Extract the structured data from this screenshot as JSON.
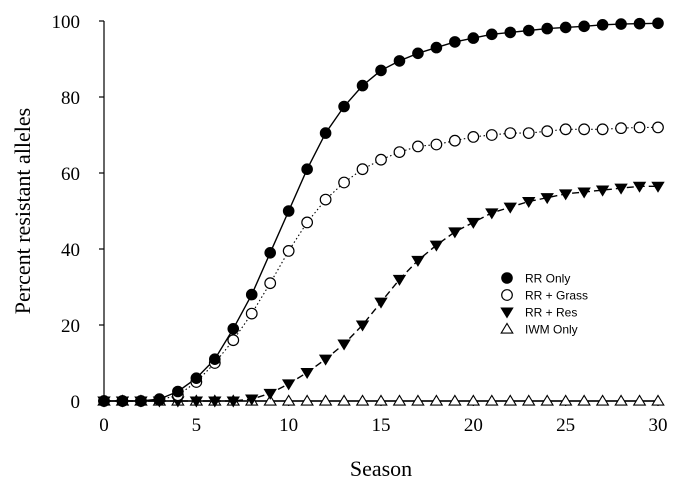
{
  "chart_data": {
    "type": "line",
    "xlabel": "Season",
    "ylabel": "Percent resistant alleles",
    "xlim": [
      0,
      30
    ],
    "ylim": [
      0,
      100
    ],
    "xticks": [
      0,
      5,
      10,
      15,
      20,
      25,
      30
    ],
    "yticks": [
      0,
      20,
      40,
      60,
      80,
      100
    ],
    "grid": false,
    "legend_position": "center-right",
    "x": [
      0,
      1,
      2,
      3,
      4,
      5,
      6,
      7,
      8,
      9,
      10,
      11,
      12,
      13,
      14,
      15,
      16,
      17,
      18,
      19,
      20,
      21,
      22,
      23,
      24,
      25,
      26,
      27,
      28,
      29,
      30
    ],
    "series": [
      {
        "name": "RR Only",
        "marker": "filled-circle",
        "line": "solid",
        "values": [
          0,
          0,
          0,
          0.5,
          2.5,
          6,
          11,
          19,
          28,
          39,
          50,
          61,
          70.5,
          77.5,
          83,
          87,
          89.5,
          91.5,
          93,
          94.5,
          95.5,
          96.5,
          97,
          97.5,
          98,
          98.3,
          98.6,
          99,
          99.2,
          99.3,
          99.4
        ]
      },
      {
        "name": "RR + Grass",
        "marker": "open-circle",
        "line": "dotted",
        "values": [
          0,
          0,
          0,
          0.3,
          1.5,
          5,
          10,
          16,
          23,
          31,
          39.5,
          47,
          53,
          57.5,
          61,
          63.5,
          65.5,
          67,
          67.5,
          68.5,
          69.5,
          70,
          70.5,
          70.5,
          71,
          71.5,
          71.5,
          71.5,
          71.8,
          72,
          72
        ]
      },
      {
        "name": "RR + Res",
        "marker": "filled-triangle-down",
        "line": "dashed",
        "values": [
          0,
          0,
          0,
          0,
          0,
          0,
          0,
          0,
          0.5,
          2,
          4.5,
          7.5,
          11,
          15,
          20,
          26,
          32,
          37,
          41,
          44.5,
          47,
          49.5,
          51,
          52.5,
          53.5,
          54.5,
          55,
          55.5,
          56,
          56.5,
          56.5
        ]
      },
      {
        "name": "IWM Only",
        "marker": "open-triangle-up",
        "line": "solid",
        "values": [
          0,
          0,
          0,
          0,
          0,
          0,
          0,
          0,
          0,
          0,
          0,
          0,
          0,
          0,
          0,
          0,
          0,
          0,
          0,
          0,
          0,
          0,
          0,
          0,
          0,
          0,
          0,
          0,
          0,
          0,
          0
        ]
      }
    ]
  }
}
